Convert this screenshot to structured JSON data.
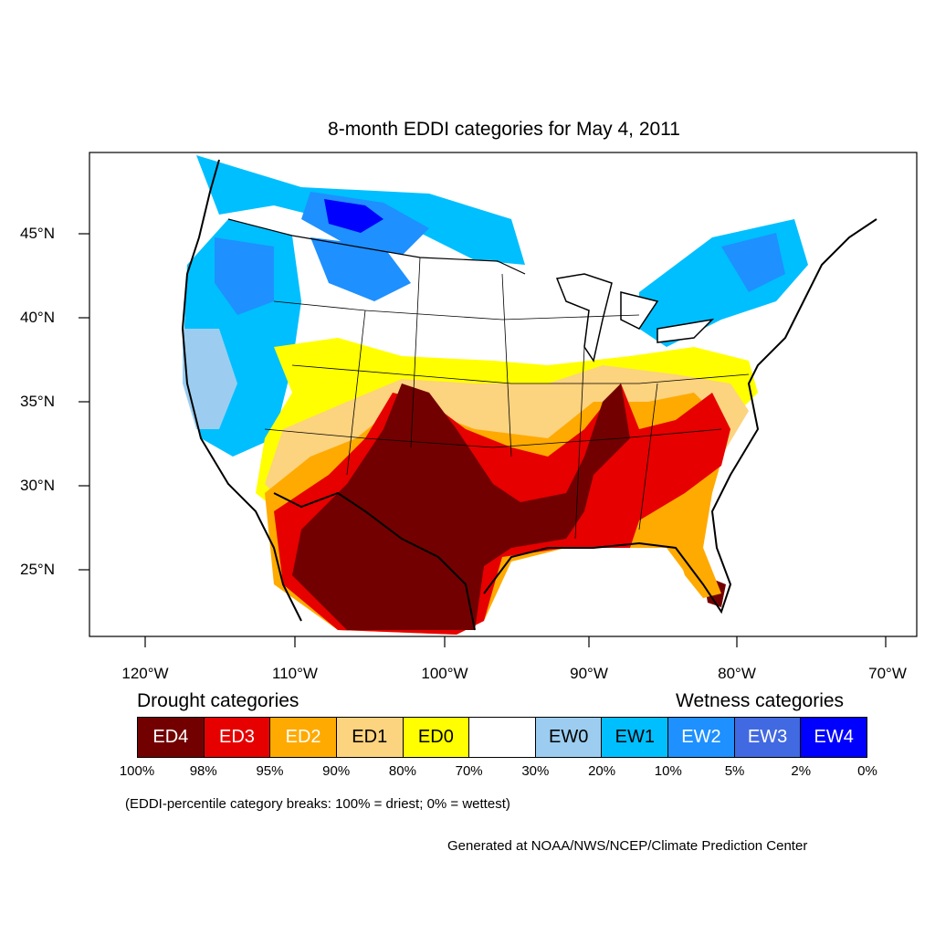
{
  "title": "8-month EDDI categories for May 4, 2011",
  "lat_labels": [
    "45°N",
    "40°N",
    "35°N",
    "30°N",
    "25°N"
  ],
  "lon_labels": [
    "120°W",
    "110°W",
    "100°W",
    "90°W",
    "80°W",
    "70°W"
  ],
  "legend": {
    "drought_heading": "Drought categories",
    "wetness_heading": "Wetness categories",
    "boxes": [
      {
        "label": "ED4",
        "color": "#730000",
        "text_color": "#ffffff"
      },
      {
        "label": "ED3",
        "color": "#e60000",
        "text_color": "#ffffff"
      },
      {
        "label": "ED2",
        "color": "#ffaa00",
        "text_color": "#ffffff"
      },
      {
        "label": "ED1",
        "color": "#fcd37f",
        "text_color": "#000000"
      },
      {
        "label": "ED0",
        "color": "#ffff00",
        "text_color": "#000000"
      },
      {
        "label": "",
        "color": "#ffffff",
        "text_color": "#000000"
      },
      {
        "label": "EW0",
        "color": "#9ccdf0",
        "text_color": "#000000"
      },
      {
        "label": "EW1",
        "color": "#00bfff",
        "text_color": "#000000"
      },
      {
        "label": "EW2",
        "color": "#1e90ff",
        "text_color": "#ffffff"
      },
      {
        "label": "EW3",
        "color": "#4169e1",
        "text_color": "#ffffff"
      },
      {
        "label": "EW4",
        "color": "#0000ff",
        "text_color": "#ffffff"
      }
    ],
    "percentiles": [
      "100%",
      "98%",
      "95%",
      "90%",
      "80%",
      "70%",
      "30%",
      "20%",
      "10%",
      "5%",
      "2%",
      "0%"
    ]
  },
  "note": "(EDDI-percentile category breaks: 100% = driest; 0% = wettest)",
  "credit": "Generated at NOAA/NWS/NCEP/Climate Prediction Center"
}
